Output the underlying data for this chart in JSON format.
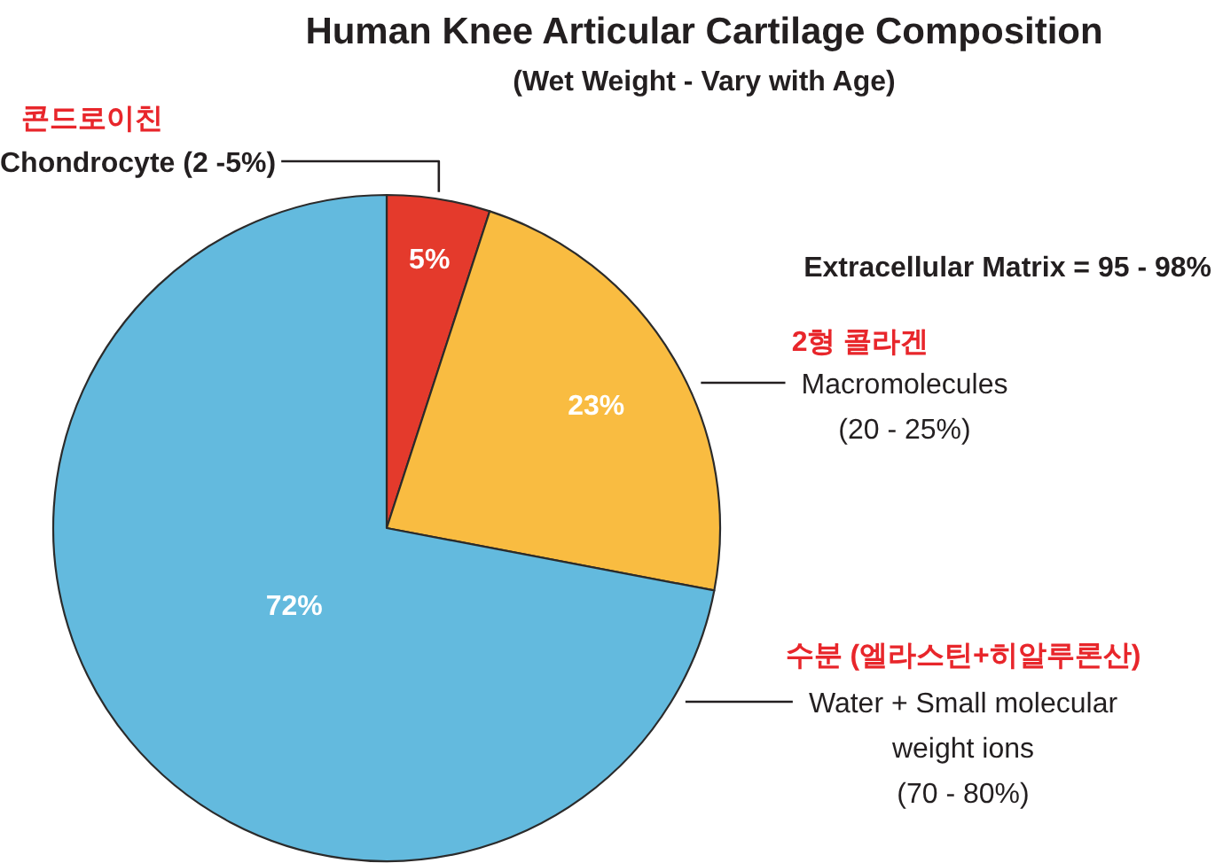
{
  "chart_data": {
    "type": "pie",
    "title": "Human Knee Articular Cartilage Composition",
    "subtitle": "(Wet Weight - Vary with Age)",
    "categories": [
      "Chondrocyte (2 -5%)",
      "Macromolecules\n(20 - 25%)",
      "Water + Small molecular\nweight ions\n(70 - 80%)"
    ],
    "values": [
      5,
      23,
      72
    ],
    "colors": [
      "#e43a2c",
      "#f9bc41",
      "#63bade"
    ],
    "value_labels": [
      "5%",
      "23%",
      "72%"
    ],
    "annotations": [
      "콘드로이친",
      "2형 콜라겐",
      "수분 (엘라스틴+히알루론산)",
      "Extracellular Matrix = 95 - 98%"
    ]
  }
}
